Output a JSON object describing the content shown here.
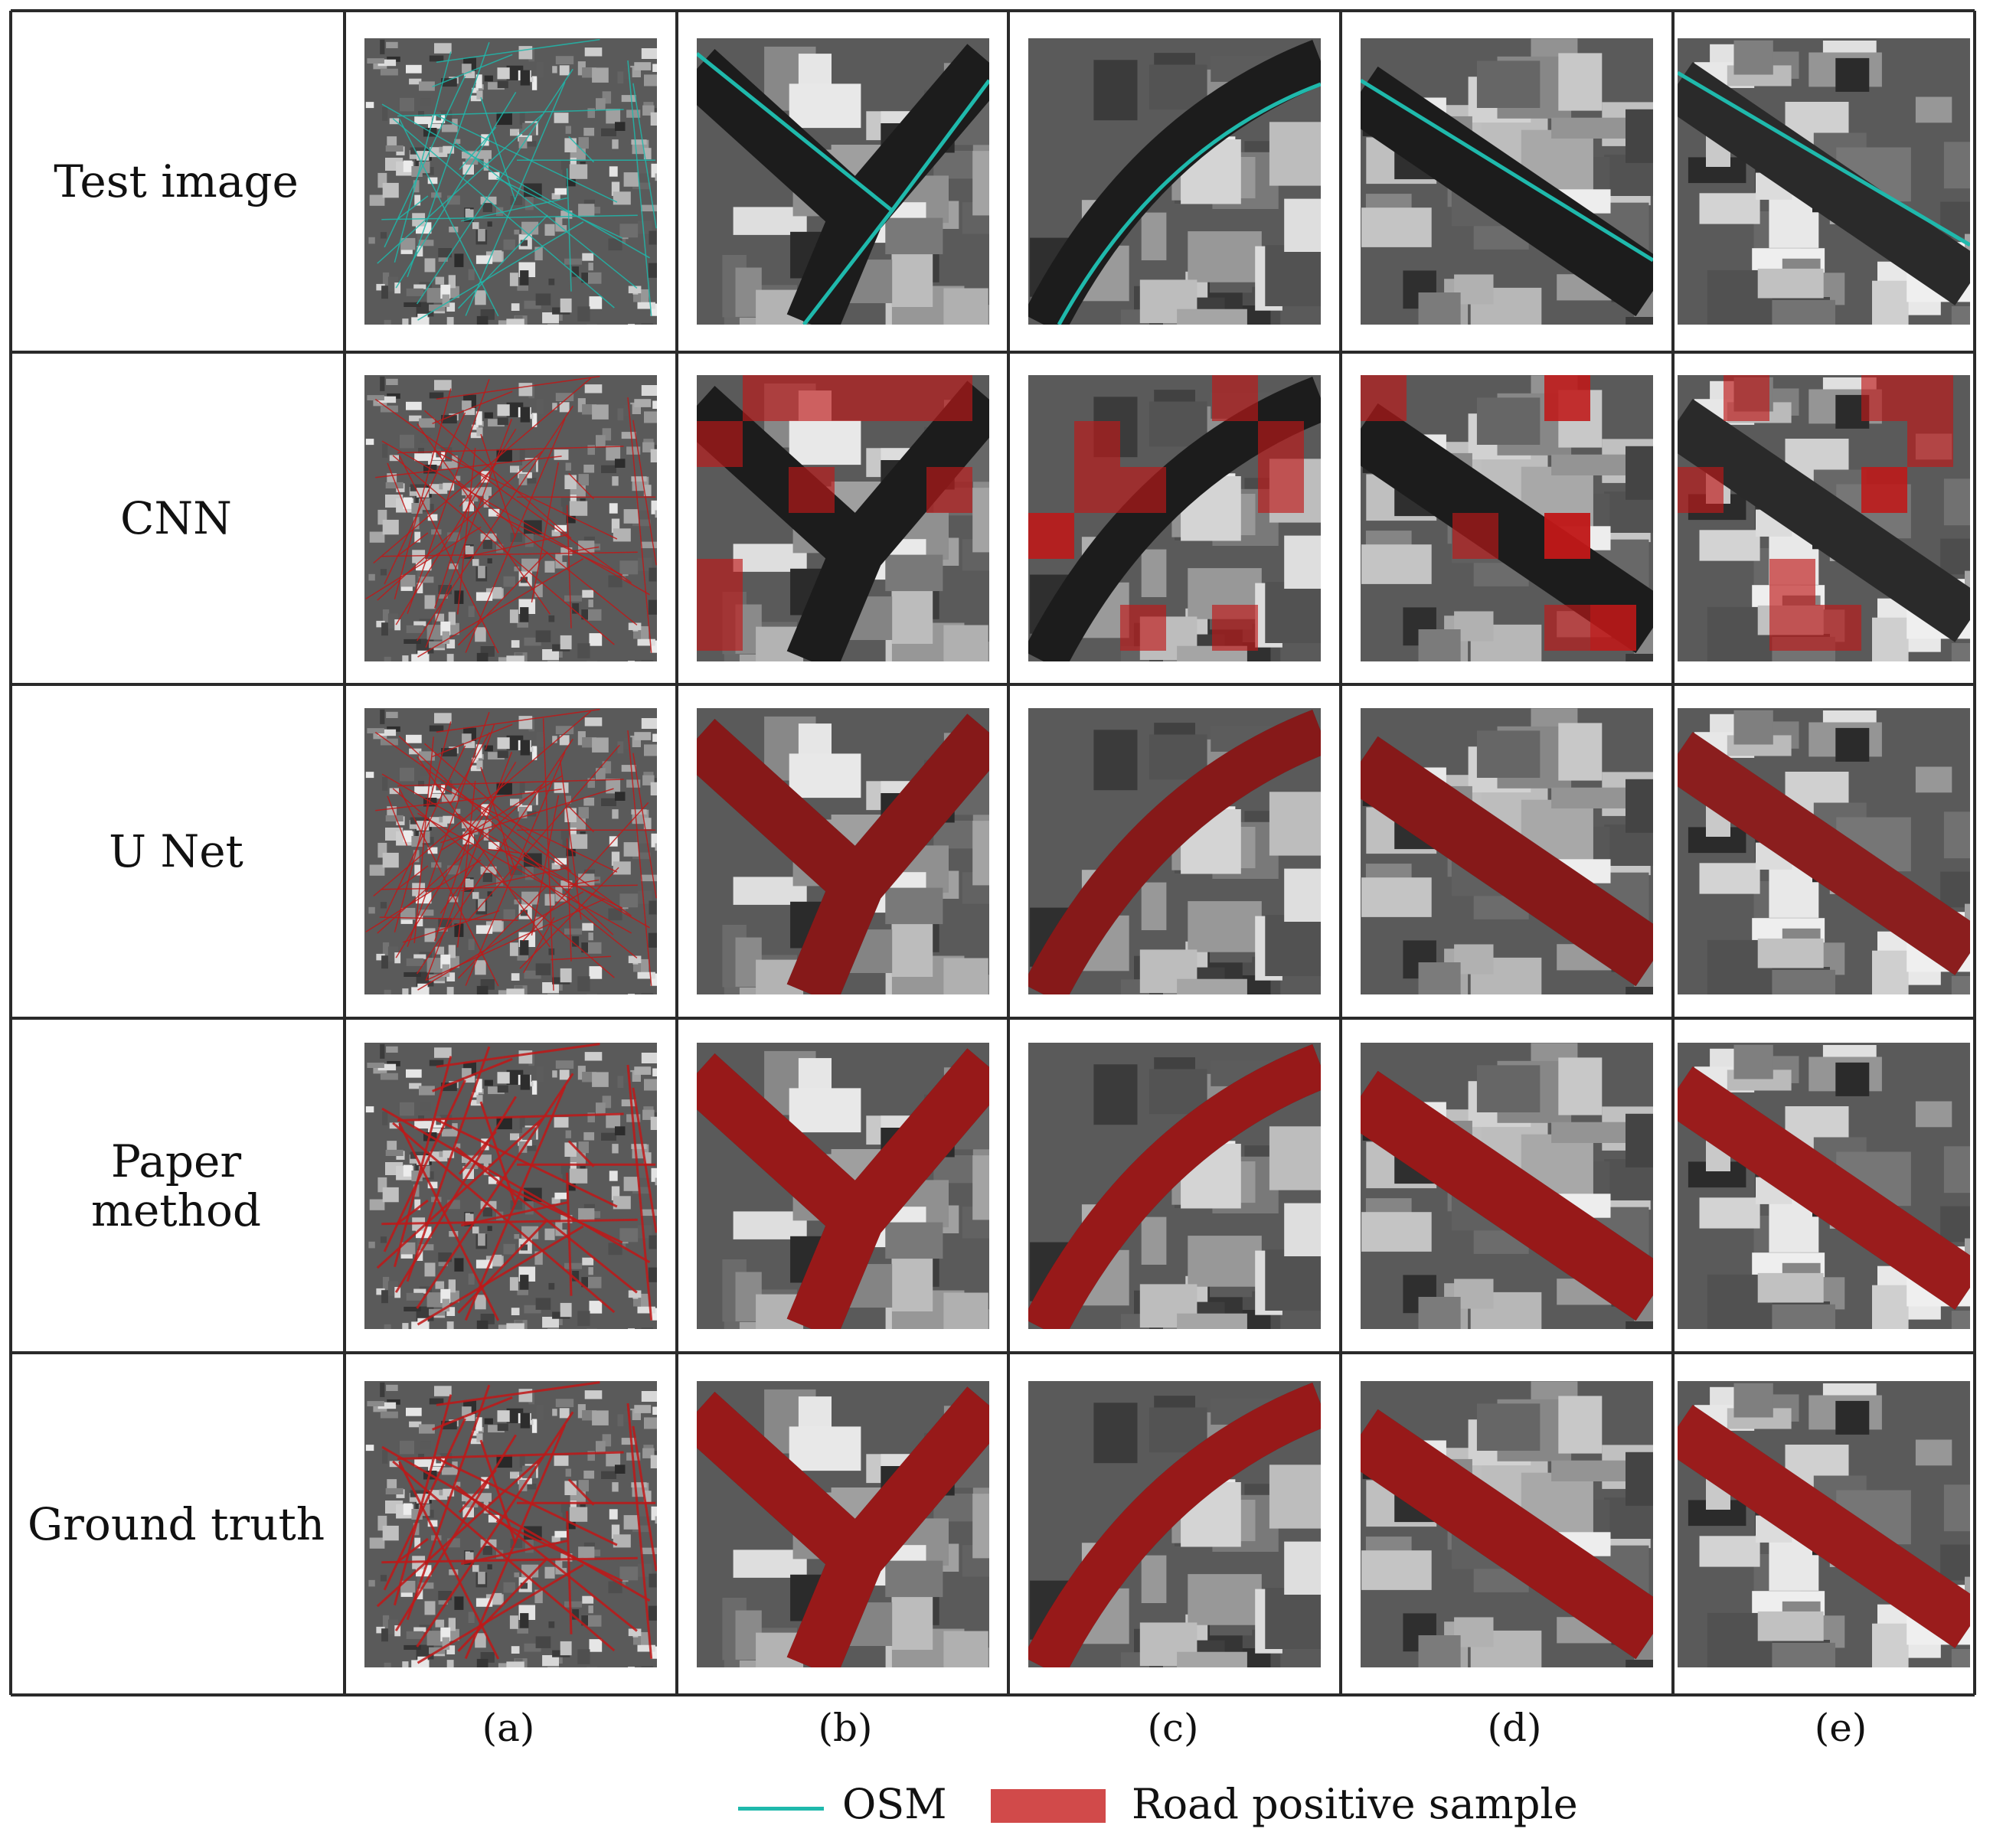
{
  "rows": [
    {
      "label": "Test image",
      "overlay": "osm"
    },
    {
      "label": "CNN",
      "overlay": "cnn"
    },
    {
      "label": "U Net",
      "overlay": "unet"
    },
    {
      "label": "Paper\nmethod",
      "overlay": "paper"
    },
    {
      "label": "Ground truth",
      "overlay": "gt"
    }
  ],
  "columns": [
    "(a)",
    "(b)",
    "(c)",
    "(d)",
    "(e)"
  ],
  "legend": {
    "osm_label": "OSM",
    "road_label": "Road positive sample"
  },
  "colors": {
    "osm": "#1fb9ac",
    "road": "#c01818",
    "grid": "#2a2a2a"
  }
}
